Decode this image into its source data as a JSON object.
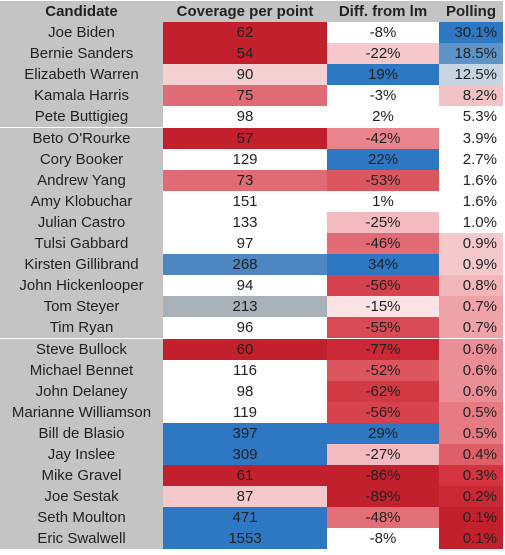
{
  "chart_data": {
    "type": "table",
    "columns": [
      "Candidate",
      "Coverage per point",
      "Diff. from lm",
      "Polling"
    ],
    "rows": [
      {
        "candidate": "Joe Biden",
        "coverage": "62",
        "diff": "-8%",
        "polling": "30.1%",
        "colors": [
          "#c2202d",
          "#ffffff",
          "#2e78c3"
        ]
      },
      {
        "candidate": "Bernie Sanders",
        "coverage": "54",
        "diff": "-22%",
        "polling": "18.5%",
        "colors": [
          "#c2202d",
          "#f5c9cc",
          "#5e93c7"
        ]
      },
      {
        "candidate": "Elizabeth Warren",
        "coverage": "90",
        "diff": "19%",
        "polling": "12.5%",
        "colors": [
          "#f5d0d3",
          "#2e78c3",
          "#c7d4e2"
        ]
      },
      {
        "candidate": "Kamala Harris",
        "coverage": "75",
        "diff": "-3%",
        "polling": "8.2%",
        "colors": [
          "#e06b74",
          "#ffffff",
          "#f2c2c6"
        ]
      },
      {
        "candidate": "Pete Buttigieg",
        "coverage": "98",
        "diff": "2%",
        "polling": "5.3%",
        "colors": [
          "#ffffff",
          "#ffffff",
          "#ffffff"
        ]
      },
      {
        "candidate": "Beto O'Rourke",
        "coverage": "57",
        "diff": "-42%",
        "polling": "3.9%",
        "colors": [
          "#c2202d",
          "#e9848d",
          "#ffffff"
        ]
      },
      {
        "candidate": "Cory Booker",
        "coverage": "129",
        "diff": "22%",
        "polling": "2.7%",
        "colors": [
          "#ffffff",
          "#2e78c3",
          "#ffffff"
        ]
      },
      {
        "candidate": "Andrew Yang",
        "coverage": "73",
        "diff": "-53%",
        "polling": "1.6%",
        "colors": [
          "#e06b74",
          "#dc5660",
          "#ffffff"
        ]
      },
      {
        "candidate": "Amy Klobuchar",
        "coverage": "151",
        "diff": "1%",
        "polling": "1.6%",
        "colors": [
          "#ffffff",
          "#ffffff",
          "#ffffff"
        ]
      },
      {
        "candidate": "Julian Castro",
        "coverage": "133",
        "diff": "-25%",
        "polling": "1.0%",
        "colors": [
          "#ffffff",
          "#f3babf",
          "#ffffff"
        ]
      },
      {
        "candidate": "Tulsi Gabbard",
        "coverage": "97",
        "diff": "-46%",
        "polling": "0.9%",
        "colors": [
          "#ffffff",
          "#e06b74",
          "#f5c9cc"
        ]
      },
      {
        "candidate": "Kirsten Gillibrand",
        "coverage": "268",
        "diff": "34%",
        "polling": "0.9%",
        "colors": [
          "#4d86c0",
          "#2e78c3",
          "#f5c9cc"
        ]
      },
      {
        "candidate": "John Hickenlooper",
        "coverage": "94",
        "diff": "-56%",
        "polling": "0.8%",
        "colors": [
          "#ffffff",
          "#d6424d",
          "#f2b5ba"
        ]
      },
      {
        "candidate": "Tom Steyer",
        "coverage": "213",
        "diff": "-15%",
        "polling": "0.7%",
        "colors": [
          "#a9b1b8",
          "#fbe2e4",
          "#eea3a9"
        ]
      },
      {
        "candidate": "Tim Ryan",
        "coverage": "96",
        "diff": "-55%",
        "polling": "0.7%",
        "colors": [
          "#ffffff",
          "#d84a55",
          "#eea3a9"
        ]
      },
      {
        "candidate": "Steve Bullock",
        "coverage": "60",
        "diff": "-77%",
        "polling": "0.6%",
        "colors": [
          "#c2202d",
          "#c92834",
          "#ea8f97"
        ]
      },
      {
        "candidate": "Michael Bennet",
        "coverage": "116",
        "diff": "-52%",
        "polling": "0.6%",
        "colors": [
          "#ffffff",
          "#dc5660",
          "#ea8f97"
        ]
      },
      {
        "candidate": "John Delaney",
        "coverage": "98",
        "diff": "-62%",
        "polling": "0.6%",
        "colors": [
          "#ffffff",
          "#d13a45",
          "#ea8f97"
        ]
      },
      {
        "candidate": "Marianne Williamson",
        "coverage": "119",
        "diff": "-56%",
        "polling": "0.5%",
        "colors": [
          "#ffffff",
          "#d6424d",
          "#e67b84"
        ]
      },
      {
        "candidate": "Bill de Blasio",
        "coverage": "397",
        "diff": "29%",
        "polling": "0.5%",
        "colors": [
          "#2e78c3",
          "#2e78c3",
          "#e67b84"
        ]
      },
      {
        "candidate": "Jay Inslee",
        "coverage": "309",
        "diff": "-27%",
        "polling": "0.4%",
        "colors": [
          "#2e78c3",
          "#f3babf",
          "#df5f69"
        ]
      },
      {
        "candidate": "Mike Gravel",
        "coverage": "61",
        "diff": "-86%",
        "polling": "0.3%",
        "colors": [
          "#c2202d",
          "#c2202d",
          "#d4333f"
        ]
      },
      {
        "candidate": "Joe Sestak",
        "coverage": "87",
        "diff": "-89%",
        "polling": "0.2%",
        "colors": [
          "#f5c9cc",
          "#c2202d",
          "#c92834"
        ]
      },
      {
        "candidate": "Seth Moulton",
        "coverage": "471",
        "diff": "-48%",
        "polling": "0.1%",
        "colors": [
          "#2e78c3",
          "#e26e77",
          "#c2202d"
        ]
      },
      {
        "candidate": "Eric Swalwell",
        "coverage": "1553",
        "diff": "-8%",
        "polling": "0.1%",
        "colors": [
          "#2e78c3",
          "#ffffff",
          "#c2202d"
        ]
      }
    ]
  }
}
